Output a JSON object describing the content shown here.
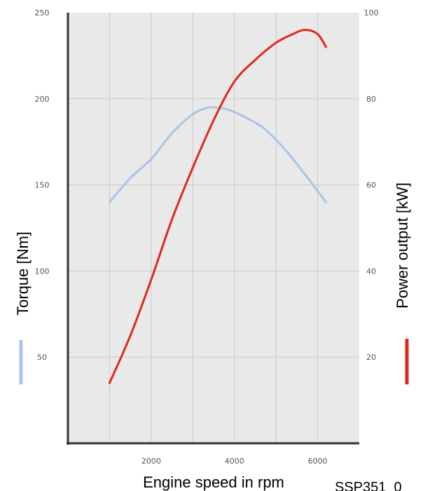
{
  "chart_data": {
    "type": "line",
    "title": "",
    "xlabel": "Engine speed in rpm",
    "ylabel_left": "Torque [Nm]",
    "ylabel_right": "Power output [kW]",
    "xlim": [
      0,
      7000
    ],
    "ylim_left": [
      0,
      250
    ],
    "ylim_right": [
      0,
      100
    ],
    "x_ticks": [
      2000,
      4000,
      6000
    ],
    "x_tick_labels": [
      "2000",
      "4000",
      "6000"
    ],
    "y_left_ticks": [
      50,
      100,
      150,
      200,
      250
    ],
    "y_left_tick_labels": [
      "50",
      "100",
      "150",
      "200",
      "250"
    ],
    "y_right_ticks": [
      20,
      40,
      60,
      80,
      100
    ],
    "y_right_tick_labels": [
      "20",
      "40",
      "60",
      "80",
      "100"
    ],
    "grid": true,
    "legend": "axis-labels",
    "series": [
      {
        "axis": "left",
        "color": "#a9c4e6",
        "x": [
          1000,
          1500,
          2000,
          2500,
          3000,
          3400,
          3800,
          4200,
          4700,
          5200,
          5700,
          6200
        ],
        "y": [
          140,
          154,
          165,
          180,
          191,
          195,
          194,
          190,
          183,
          171,
          156,
          140
        ]
      },
      {
        "axis": "right",
        "color": "#dd2a1e",
        "x": [
          1000,
          1500,
          2000,
          2500,
          3000,
          3500,
          4000,
          4500,
          5000,
          5400,
          5700,
          6000,
          6200
        ],
        "y": [
          14,
          25,
          38,
          52,
          64,
          75,
          84,
          89,
          93,
          95,
          96,
          95,
          92
        ]
      }
    ],
    "footnote": "SSP351_0"
  }
}
